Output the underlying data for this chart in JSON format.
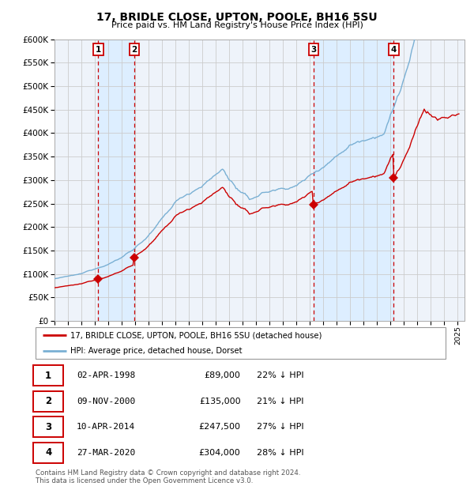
{
  "title1": "17, BRIDLE CLOSE, UPTON, POOLE, BH16 5SU",
  "title2": "Price paid vs. HM Land Registry's House Price Index (HPI)",
  "ylim": [
    0,
    600000
  ],
  "yticks": [
    0,
    50000,
    100000,
    150000,
    200000,
    250000,
    300000,
    350000,
    400000,
    450000,
    500000,
    550000,
    600000
  ],
  "xlim": [
    1995.0,
    2025.5
  ],
  "sale_dates_num": [
    1998.25,
    2000.92,
    2014.27,
    2020.23
  ],
  "sale_prices": [
    89000,
    135000,
    247500,
    304000
  ],
  "sale_labels": [
    "1",
    "2",
    "3",
    "4"
  ],
  "sale_color": "#cc0000",
  "hpi_color": "#7ab0d4",
  "grid_color": "#cccccc",
  "vspan_color": "#ddeeff",
  "dashed_color": "#cc0000",
  "legend_label_red": "17, BRIDLE CLOSE, UPTON, POOLE, BH16 5SU (detached house)",
  "legend_label_blue": "HPI: Average price, detached house, Dorset",
  "table_entries": [
    {
      "num": "1",
      "date": "02-APR-1998",
      "price": "£89,000",
      "pct": "22% ↓ HPI"
    },
    {
      "num": "2",
      "date": "09-NOV-2000",
      "price": "£135,000",
      "pct": "21% ↓ HPI"
    },
    {
      "num": "3",
      "date": "10-APR-2014",
      "price": "£247,500",
      "pct": "27% ↓ HPI"
    },
    {
      "num": "4",
      "date": "27-MAR-2020",
      "price": "£304,000",
      "pct": "28% ↓ HPI"
    }
  ],
  "footnote": "Contains HM Land Registry data © Crown copyright and database right 2024.\nThis data is licensed under the Open Government Licence v3.0.",
  "background_color": "#ffffff",
  "plot_bg_color": "#eef3fa"
}
